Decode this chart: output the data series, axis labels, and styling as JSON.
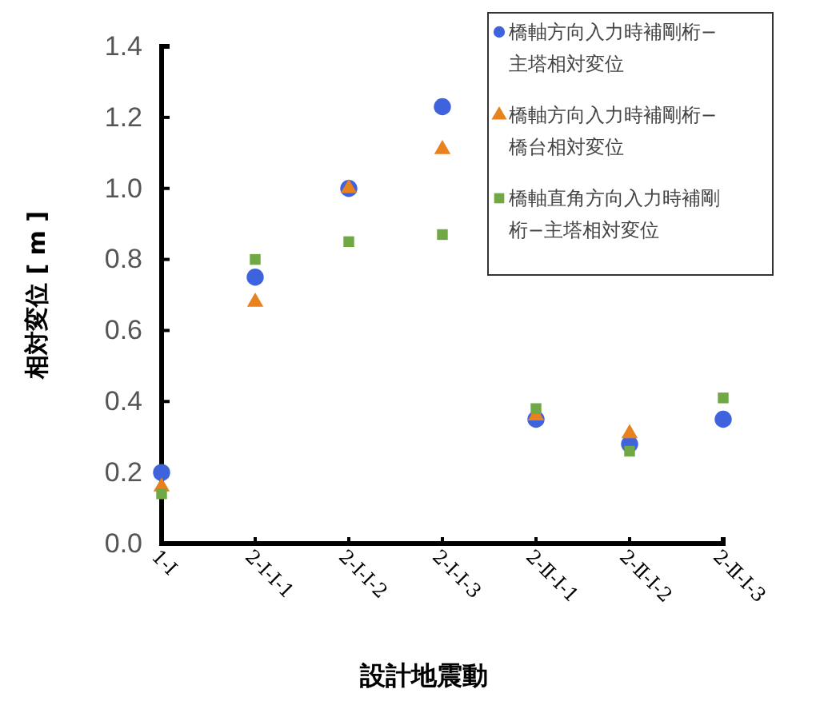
{
  "chart_data": {
    "type": "scatter",
    "xlabel": "設計地震動",
    "ylabel": "相対変位 [ m ]",
    "categories": [
      "1-Ⅰ",
      "2-Ⅰ-Ⅰ-1",
      "2-Ⅰ-Ⅰ-2",
      "2-Ⅰ-Ⅰ-3",
      "2-Ⅱ-Ⅰ-1",
      "2-Ⅱ-Ⅰ-2",
      "2-Ⅱ-Ⅰ-3"
    ],
    "series": [
      {
        "name": "橋軸方向入力時補剛桁−主塔相対変位",
        "color": "#3f63dc",
        "marker": "circle",
        "values": [
          0.2,
          0.75,
          1.0,
          1.23,
          0.35,
          0.28,
          0.35
        ]
      },
      {
        "name": "橋軸方向入力時補剛桁−橋台相対変位",
        "color": "#e8821e",
        "marker": "triangle",
        "values": [
          0.16,
          0.68,
          1.0,
          1.11,
          0.36,
          0.31,
          null
        ]
      },
      {
        "name": "橋軸直角方向入力時補剛桁−主塔相対変位",
        "color": "#6fa845",
        "marker": "square",
        "values": [
          0.14,
          0.8,
          0.85,
          0.87,
          0.38,
          0.26,
          0.41
        ]
      }
    ],
    "ylim": [
      0,
      1.4
    ],
    "yticks": [
      {
        "value": 0,
        "label": "0.0"
      },
      0.2,
      0.4,
      0.6,
      0.8,
      {
        "value": 1,
        "label": "1.0"
      },
      1.2,
      1.4
    ],
    "legend": "top right",
    "grid": false
  }
}
